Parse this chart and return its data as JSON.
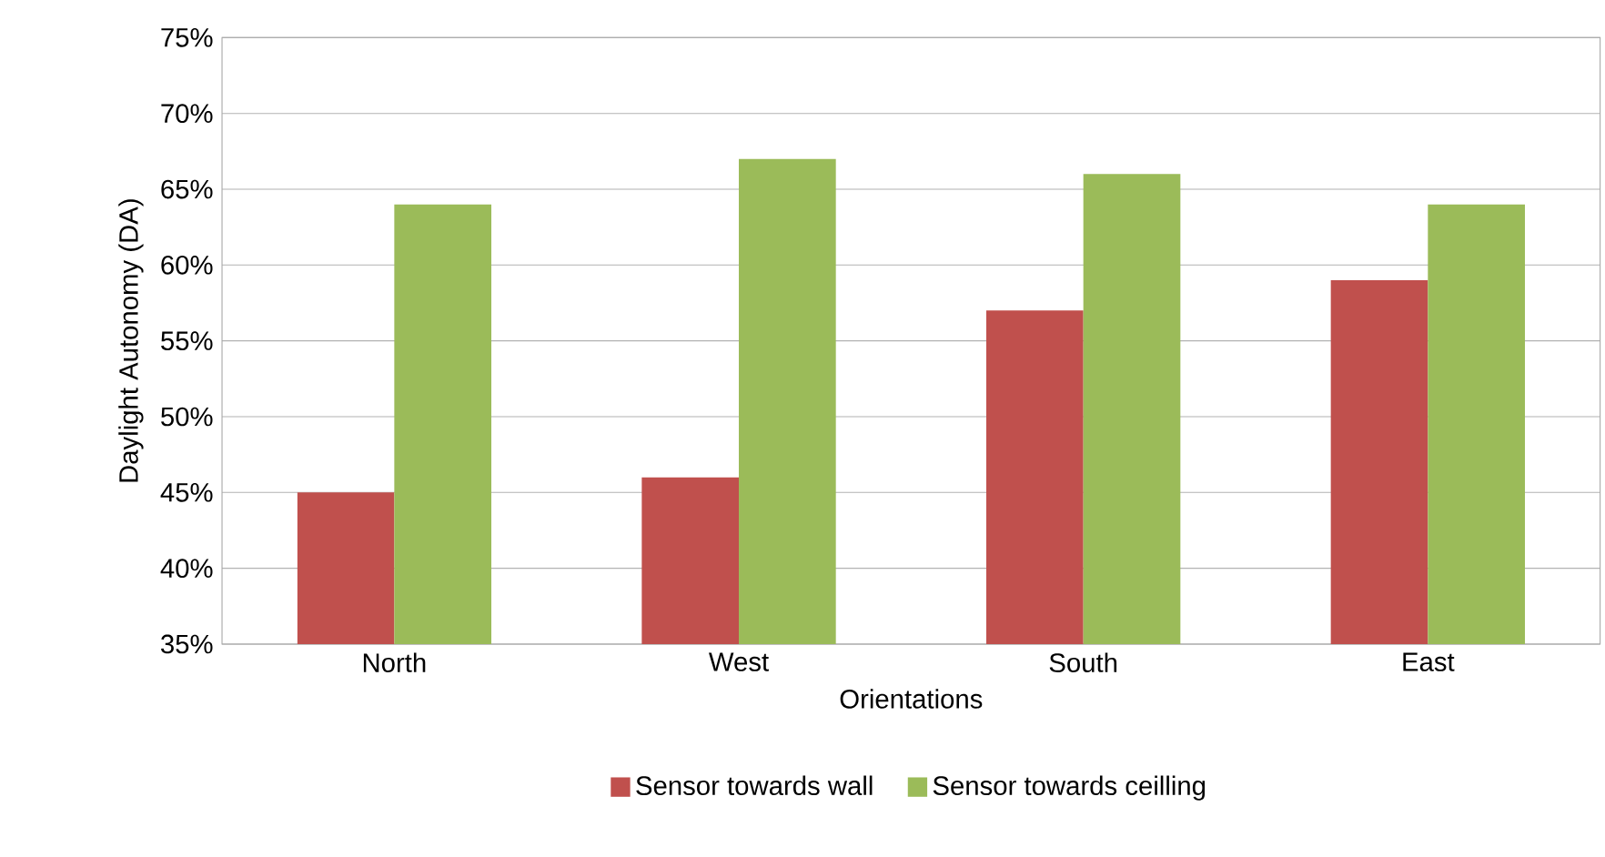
{
  "chart_data": {
    "type": "bar",
    "xlabel": "Orientations",
    "ylabel": "Daylight Autonomy (DA)",
    "categories": [
      "North",
      "West",
      "South",
      "East"
    ],
    "series": [
      {
        "name": "Sensor towards wall",
        "color": "#c0504d",
        "values": [
          45,
          46,
          57,
          59
        ]
      },
      {
        "name": "Sensor towards ceilling",
        "color": "#9bbb59",
        "values": [
          64,
          67,
          66,
          64
        ]
      }
    ],
    "ylim": [
      35,
      75
    ],
    "yticks": [
      {
        "value": 35,
        "label": "35%"
      },
      {
        "value": 40,
        "label": "40%"
      },
      {
        "value": 45,
        "label": "45%"
      },
      {
        "value": 50,
        "label": "50%"
      },
      {
        "value": 55,
        "label": "55%"
      },
      {
        "value": 60,
        "label": "60%"
      },
      {
        "value": 65,
        "label": "65%"
      },
      {
        "value": 70,
        "label": "70%"
      },
      {
        "value": 75,
        "label": "75%"
      }
    ],
    "grid": "y",
    "legend": "bottom"
  }
}
